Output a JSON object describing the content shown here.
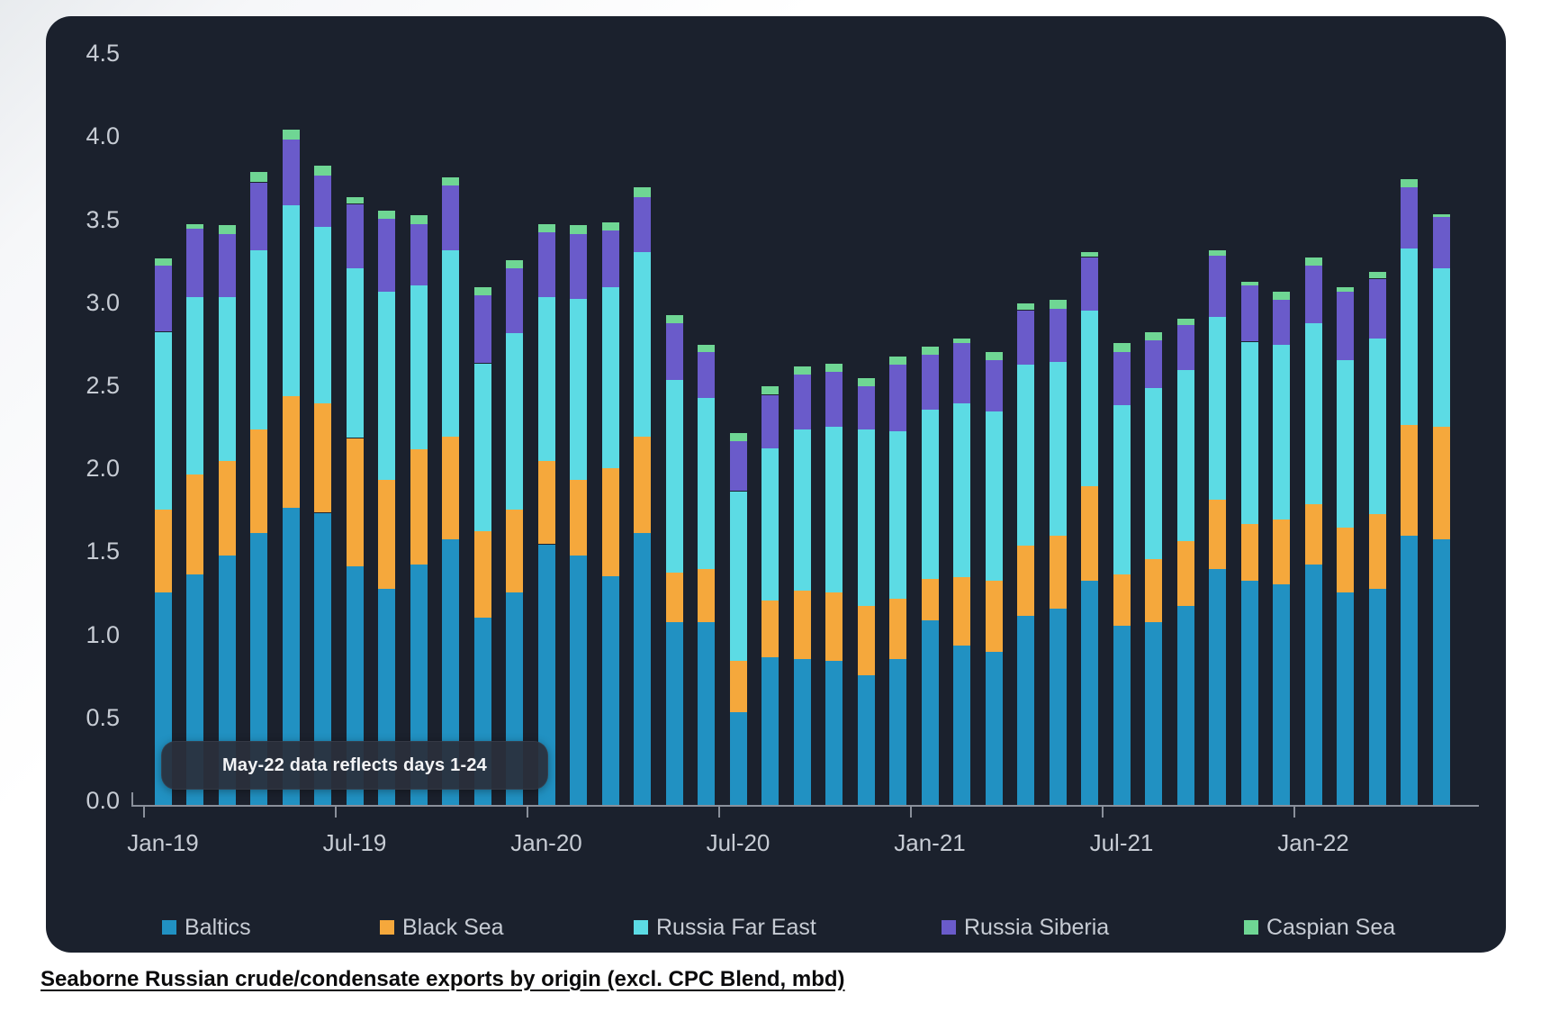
{
  "chart": {
    "y_ticks": [
      "0.0",
      "0.5",
      "1.0",
      "1.5",
      "2.0",
      "2.5",
      "3.0",
      "3.5",
      "4.0",
      "4.5"
    ],
    "x_ticks": [
      "Jan-19",
      "Jul-19",
      "Jan-20",
      "Jul-20",
      "Jan-21",
      "Jul-21",
      "Jan-22"
    ]
  },
  "chart_data": {
    "type": "bar",
    "stacked": true,
    "title": "Seaborne Russian crude/condensate exports by origin (excl. CPC Blend, mbd)",
    "xlabel": "",
    "ylabel": "",
    "ylim": [
      0,
      4.5
    ],
    "grid": false,
    "legend_position": "bottom",
    "annotation": "May-22 data reflects days 1-24",
    "background_color": "#1b212d",
    "text_color": "#c7ccd4",
    "categories": [
      "Jan-19",
      "Feb-19",
      "Mar-19",
      "Apr-19",
      "May-19",
      "Jun-19",
      "Jul-19",
      "Aug-19",
      "Sep-19",
      "Oct-19",
      "Nov-19",
      "Dec-19",
      "Jan-20",
      "Feb-20",
      "Mar-20",
      "Apr-20",
      "May-20",
      "Jun-20",
      "Jul-20",
      "Aug-20",
      "Sep-20",
      "Oct-20",
      "Nov-20",
      "Dec-20",
      "Jan-21",
      "Feb-21",
      "Mar-21",
      "Apr-21",
      "May-21",
      "Jun-21",
      "Jul-21",
      "Aug-21",
      "Sep-21",
      "Oct-21",
      "Nov-21",
      "Dec-21",
      "Jan-22",
      "Feb-22",
      "Mar-22",
      "Apr-22",
      "May-22"
    ],
    "series": [
      {
        "name": "Baltics",
        "color": "#2191c2",
        "values": [
          1.28,
          1.39,
          1.5,
          1.64,
          1.79,
          1.76,
          1.44,
          1.3,
          1.45,
          1.6,
          1.13,
          1.28,
          1.57,
          1.5,
          1.38,
          1.64,
          1.1,
          1.1,
          0.56,
          0.89,
          0.88,
          0.87,
          0.78,
          0.88,
          1.11,
          0.96,
          0.92,
          1.14,
          1.18,
          1.35,
          1.08,
          1.1,
          1.2,
          1.42,
          1.35,
          1.33,
          1.45,
          1.28,
          1.3,
          1.62,
          1.6
        ]
      },
      {
        "name": "Black Sea",
        "color": "#f5a83c",
        "values": [
          0.5,
          0.6,
          0.57,
          0.62,
          0.67,
          0.66,
          0.77,
          0.66,
          0.69,
          0.62,
          0.52,
          0.5,
          0.5,
          0.46,
          0.65,
          0.58,
          0.3,
          0.32,
          0.31,
          0.34,
          0.41,
          0.41,
          0.42,
          0.36,
          0.25,
          0.41,
          0.43,
          0.42,
          0.44,
          0.57,
          0.31,
          0.38,
          0.39,
          0.42,
          0.34,
          0.39,
          0.36,
          0.39,
          0.45,
          0.67,
          0.68
        ]
      },
      {
        "name": "Russia Far East",
        "color": "#5cdbe4",
        "values": [
          1.07,
          1.07,
          0.99,
          1.08,
          1.15,
          1.06,
          1.02,
          1.13,
          0.99,
          1.12,
          1.01,
          1.06,
          0.99,
          1.09,
          1.09,
          1.11,
          1.16,
          1.03,
          1.02,
          0.92,
          0.97,
          1.0,
          1.06,
          1.01,
          1.02,
          1.05,
          1.02,
          1.09,
          1.05,
          1.06,
          1.02,
          1.03,
          1.03,
          1.1,
          1.1,
          1.05,
          1.09,
          1.01,
          1.06,
          1.06,
          0.95
        ]
      },
      {
        "name": "Russia Siberia",
        "color": "#6a5bca",
        "values": [
          0.4,
          0.41,
          0.38,
          0.41,
          0.4,
          0.31,
          0.39,
          0.44,
          0.37,
          0.39,
          0.41,
          0.39,
          0.39,
          0.39,
          0.34,
          0.33,
          0.34,
          0.28,
          0.3,
          0.32,
          0.33,
          0.33,
          0.26,
          0.4,
          0.33,
          0.36,
          0.31,
          0.33,
          0.32,
          0.32,
          0.32,
          0.29,
          0.27,
          0.37,
          0.34,
          0.27,
          0.35,
          0.41,
          0.36,
          0.37,
          0.31
        ]
      },
      {
        "name": "Caspian Sea",
        "color": "#6fd694",
        "values": [
          0.04,
          0.03,
          0.05,
          0.06,
          0.06,
          0.06,
          0.04,
          0.05,
          0.05,
          0.05,
          0.05,
          0.05,
          0.05,
          0.05,
          0.05,
          0.06,
          0.05,
          0.04,
          0.05,
          0.05,
          0.05,
          0.05,
          0.05,
          0.05,
          0.05,
          0.03,
          0.05,
          0.04,
          0.05,
          0.03,
          0.05,
          0.05,
          0.04,
          0.03,
          0.02,
          0.05,
          0.05,
          0.03,
          0.04,
          0.05,
          0.02
        ]
      }
    ]
  }
}
